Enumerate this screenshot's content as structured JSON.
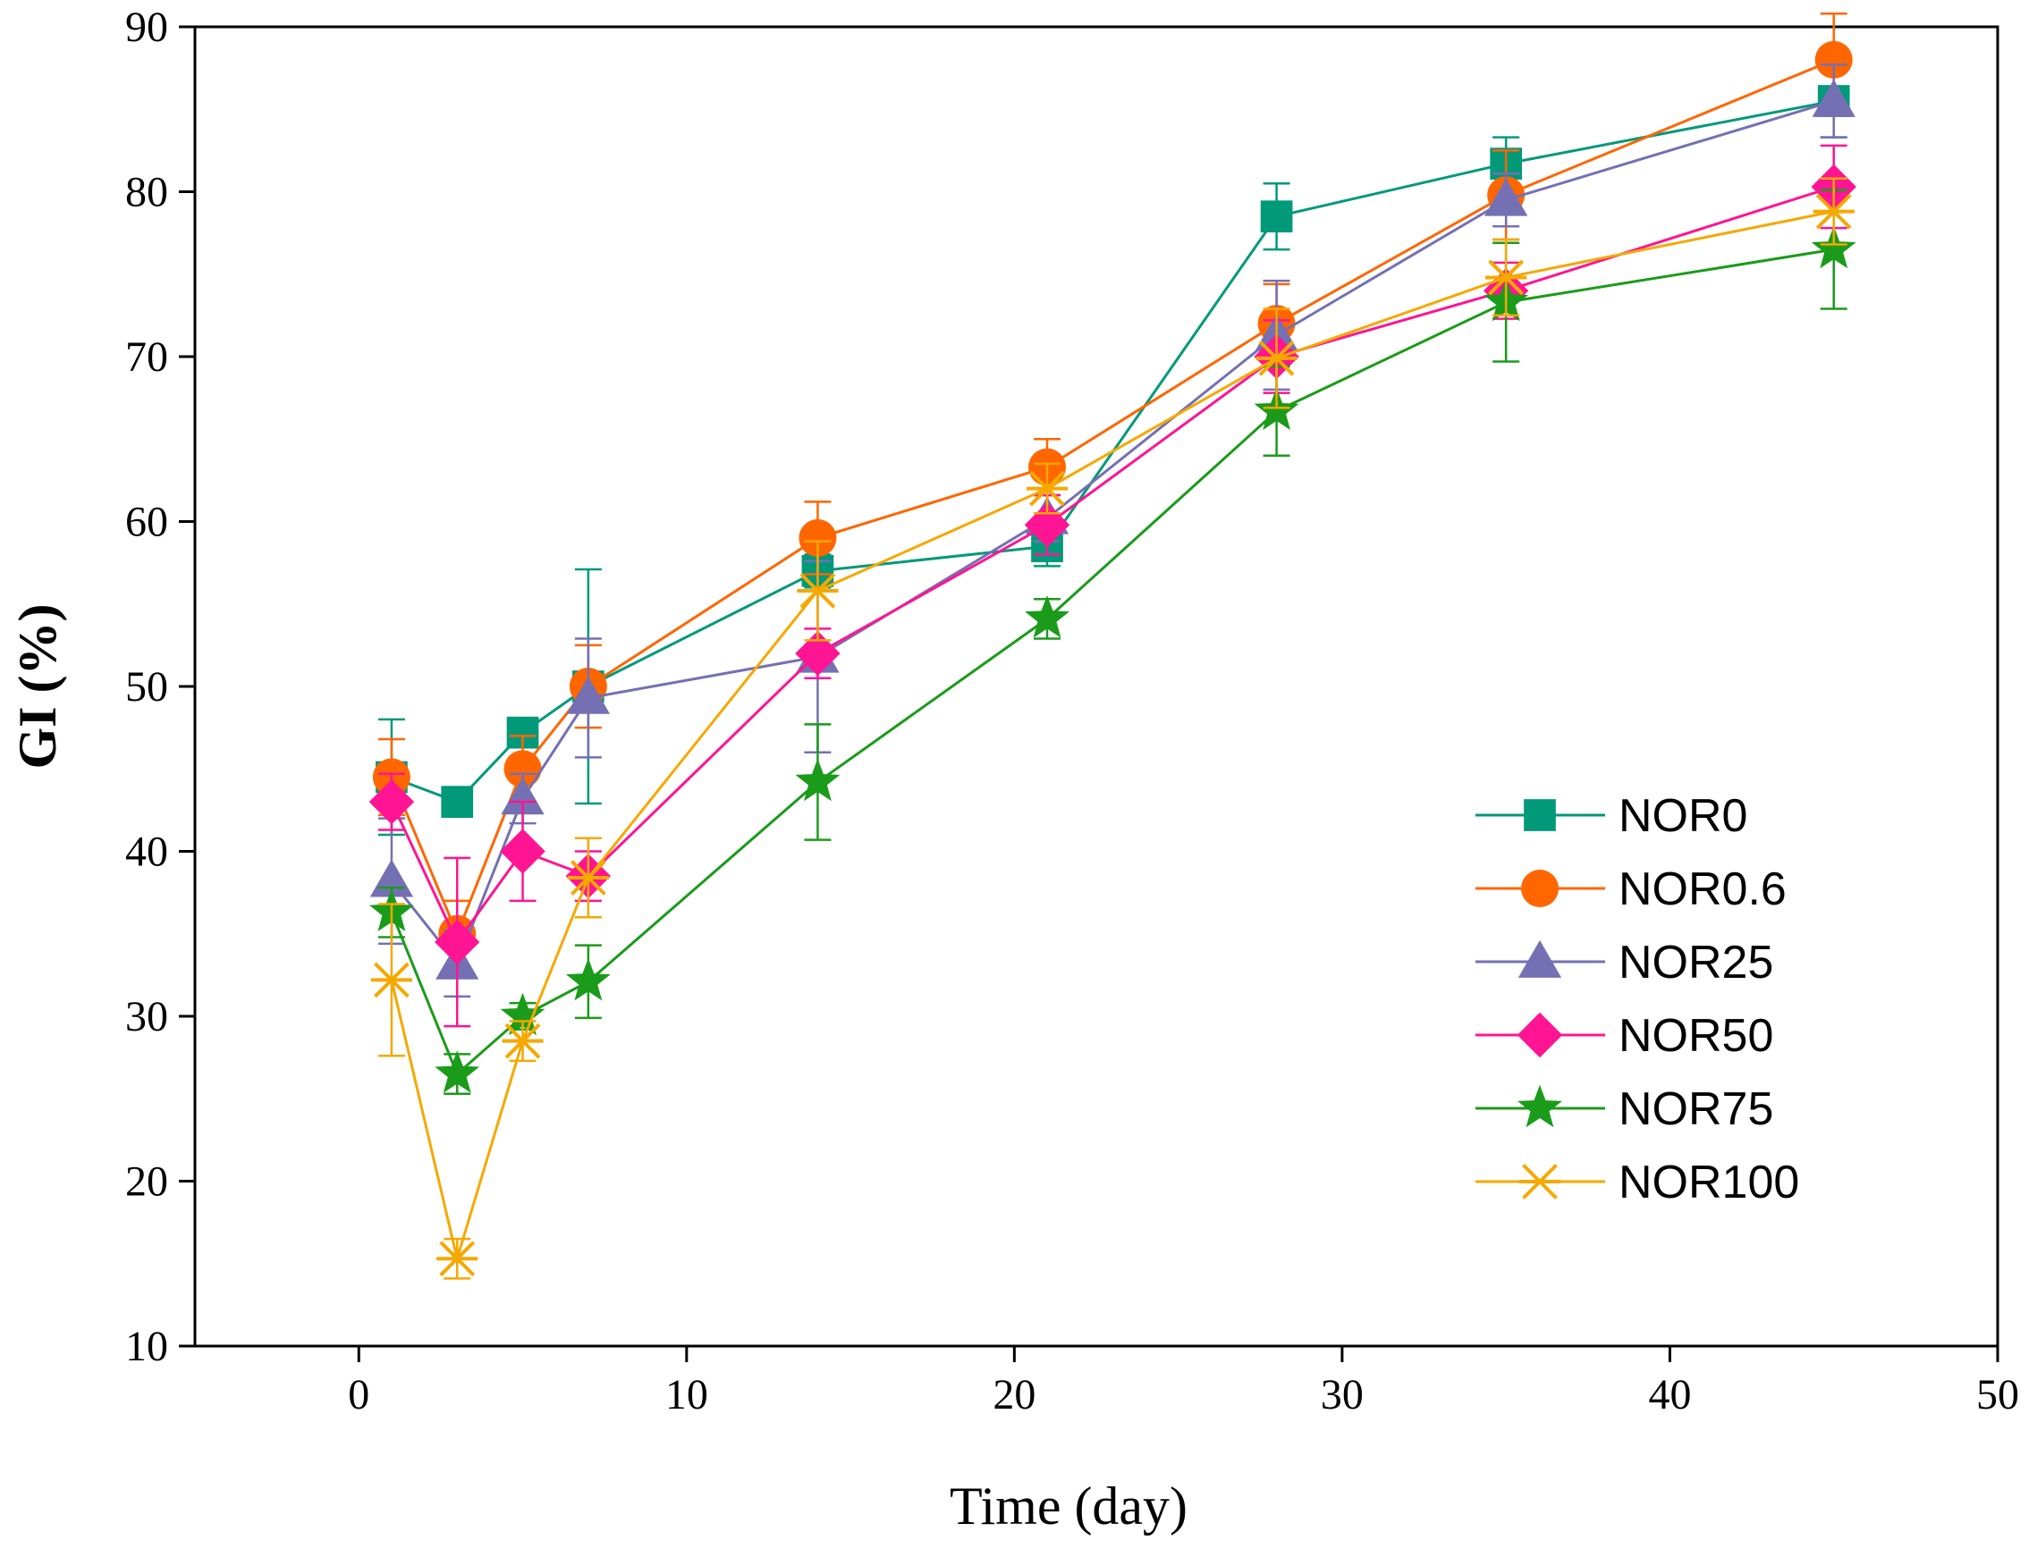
{
  "chart_data": {
    "type": "line",
    "xlabel": "Time (day)",
    "ylabel": "GI (%)",
    "xlim": [
      -5,
      50
    ],
    "ylim": [
      10,
      90
    ],
    "xticks": [
      0,
      10,
      20,
      30,
      40,
      50
    ],
    "yticks": [
      10,
      20,
      30,
      40,
      50,
      60,
      70,
      80,
      90
    ],
    "grid": false,
    "legend_position": "right",
    "x": [
      1,
      3,
      5,
      7,
      14,
      21,
      28,
      35,
      45
    ],
    "series": [
      {
        "name": "NOR0",
        "color": "#00997a",
        "marker": "square",
        "values": [
          44.5,
          43.0,
          47.2,
          50.0,
          57.0,
          58.5,
          78.5,
          81.7,
          85.5
        ],
        "errors": [
          3.5,
          0.6,
          0.8,
          7.1,
          1.0,
          1.2,
          2.0,
          1.6,
          2.2
        ]
      },
      {
        "name": "NOR0.6",
        "color": "#ff6600",
        "marker": "circle",
        "values": [
          44.5,
          35.0,
          45.0,
          50.0,
          59.0,
          63.3,
          72.0,
          79.8,
          88.0
        ],
        "errors": [
          2.3,
          2.0,
          2.0,
          2.5,
          2.2,
          1.7,
          2.4,
          2.7,
          2.8
        ]
      },
      {
        "name": "NOR25",
        "color": "#7470b3",
        "marker": "triangle",
        "values": [
          38.2,
          33.2,
          43.2,
          49.3,
          51.8,
          60.2,
          71.3,
          79.5,
          85.5
        ],
        "errors": [
          3.8,
          2.0,
          1.5,
          3.6,
          5.8,
          1.4,
          3.3,
          1.6,
          2.2
        ]
      },
      {
        "name": "NOR50",
        "color": "#ff1493",
        "marker": "diamond",
        "values": [
          43.0,
          34.5,
          40.0,
          38.5,
          52.0,
          59.8,
          70.0,
          74.0,
          80.3
        ],
        "errors": [
          1.7,
          5.1,
          3.0,
          1.5,
          1.5,
          1.8,
          2.2,
          1.7,
          2.5
        ]
      },
      {
        "name": "NOR75",
        "color": "#1a9b1a",
        "marker": "star",
        "values": [
          36.3,
          26.5,
          30.0,
          32.1,
          44.2,
          54.1,
          66.7,
          73.3,
          76.5
        ],
        "errors": [
          1.5,
          1.2,
          0.8,
          2.2,
          3.5,
          1.2,
          2.7,
          3.6,
          3.6
        ]
      },
      {
        "name": "NOR100",
        "color": "#f5a800",
        "marker": "asterisk",
        "values": [
          32.2,
          15.3,
          28.5,
          38.4,
          55.8,
          62.0,
          69.9,
          74.8,
          78.8
        ],
        "errors": [
          4.6,
          1.2,
          1.2,
          2.4,
          3.0,
          1.5,
          3.0,
          2.3,
          2.0
        ]
      }
    ]
  }
}
